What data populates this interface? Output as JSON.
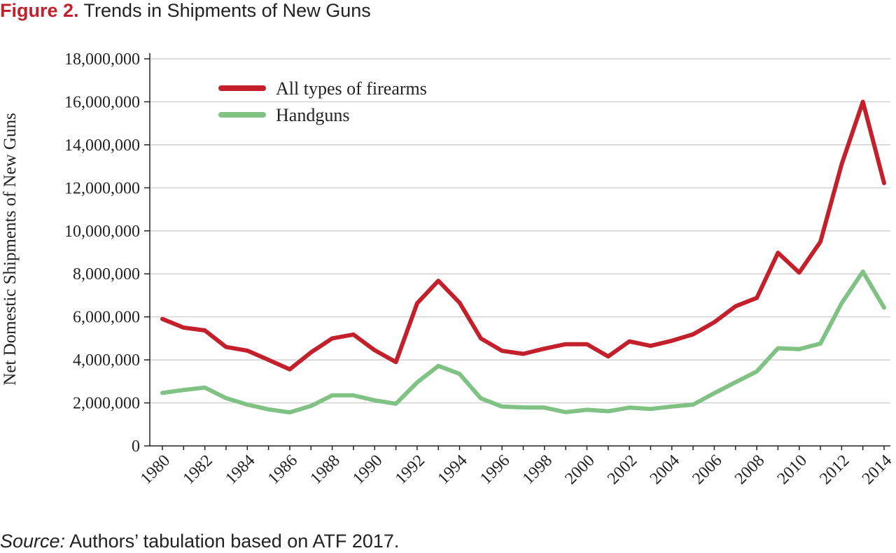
{
  "figure": {
    "label": "Figure 2.",
    "title": "Trends in Shipments of New Guns"
  },
  "source": {
    "label": "Source:",
    "text": "Authors’ tabulation based on ATF 2017."
  },
  "chart_data": {
    "type": "line",
    "title": "Trends in Shipments of New Guns",
    "xlabel": "",
    "ylabel": "Net Domestic Shipments of New Guns",
    "x": [
      1980,
      1981,
      1982,
      1983,
      1984,
      1985,
      1986,
      1987,
      1988,
      1989,
      1990,
      1991,
      1992,
      1993,
      1994,
      1995,
      1996,
      1997,
      1998,
      1999,
      2000,
      2001,
      2002,
      2003,
      2004,
      2005,
      2006,
      2007,
      2008,
      2009,
      2010,
      2011,
      2012,
      2013,
      2014
    ],
    "xticks": [
      "1980",
      "1982",
      "1984",
      "1986",
      "1988",
      "1990",
      "1992",
      "1994",
      "1996",
      "1998",
      "2000",
      "2002",
      "2004",
      "2006",
      "2008",
      "2010",
      "2012",
      "2014"
    ],
    "ylim": [
      0,
      18000000
    ],
    "yticks": [
      0,
      2000000,
      4000000,
      6000000,
      8000000,
      10000000,
      12000000,
      14000000,
      16000000,
      18000000
    ],
    "ytick_labels": [
      "0",
      "2,000,000",
      "4,000,000",
      "6,000,000",
      "8,000,000",
      "10,000,000",
      "12,000,000",
      "14,000,000",
      "16,000,000",
      "18,000,000"
    ],
    "grid": "horizontal",
    "legend_position": "top-left",
    "series": [
      {
        "name": "All types of firearms",
        "color": "#c3202c",
        "values": [
          5900000,
          5500000,
          5370000,
          4600000,
          4430000,
          4000000,
          3560000,
          4350000,
          5000000,
          5180000,
          4450000,
          3900000,
          6630000,
          7680000,
          6660000,
          5000000,
          4420000,
          4280000,
          4520000,
          4730000,
          4730000,
          4160000,
          4860000,
          4650000,
          4890000,
          5190000,
          5750000,
          6490000,
          6880000,
          8980000,
          8060000,
          9490000,
          13100000,
          16000000,
          12220000
        ]
      },
      {
        "name": "Handguns",
        "color": "#7fc283",
        "values": [
          2460000,
          2600000,
          2710000,
          2220000,
          1920000,
          1700000,
          1560000,
          1860000,
          2350000,
          2350000,
          2120000,
          1960000,
          2950000,
          3720000,
          3350000,
          2210000,
          1830000,
          1790000,
          1780000,
          1570000,
          1680000,
          1610000,
          1780000,
          1720000,
          1830000,
          1920000,
          2450000,
          2960000,
          3460000,
          4540000,
          4500000,
          4760000,
          6640000,
          8100000,
          6430000
        ]
      }
    ]
  }
}
